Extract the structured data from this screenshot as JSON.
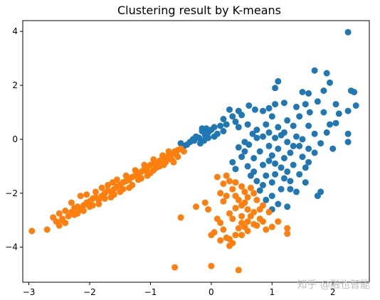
{
  "chart_data": {
    "type": "scatter",
    "title": "Clustering result by K-means",
    "xlabel": "",
    "ylabel": "",
    "xlim": [
      -3.1,
      2.6
    ],
    "ylim": [
      -5.3,
      4.4
    ],
    "xticks": [
      -3,
      -2,
      -1,
      0,
      1,
      2
    ],
    "yticks": [
      -4,
      -2,
      0,
      2,
      4
    ],
    "grid": false,
    "legend": "none",
    "series": [
      {
        "color": "#1f77b4",
        "points": [
          [
            2.25,
            3.97
          ],
          [
            1.7,
            2.55
          ],
          [
            1.9,
            2.45
          ],
          [
            1.1,
            2.15
          ],
          [
            1.05,
            1.9
          ],
          [
            1.5,
            1.75
          ],
          [
            1.6,
            1.7
          ],
          [
            1.85,
            1.8
          ],
          [
            1.95,
            2.1
          ],
          [
            2.3,
            1.8
          ],
          [
            2.35,
            1.75
          ],
          [
            2.05,
            1.3
          ],
          [
            1.75,
            1.4
          ],
          [
            1.55,
            1.3
          ],
          [
            1.2,
            1.35
          ],
          [
            1.05,
            1.3
          ],
          [
            0.95,
            1.15
          ],
          [
            0.85,
            1.05
          ],
          [
            0.72,
            1.1
          ],
          [
            0.62,
            1.25
          ],
          [
            0.45,
            1.05
          ],
          [
            0.3,
            1.1
          ],
          [
            1.4,
            1.2
          ],
          [
            1.62,
            1.0
          ],
          [
            1.85,
            1.0
          ],
          [
            2.1,
            0.95
          ],
          [
            2.25,
            1.05
          ],
          [
            2.38,
            1.25
          ],
          [
            2.05,
            0.6
          ],
          [
            2.25,
            0.2
          ],
          [
            2.25,
            -0.1
          ],
          [
            1.95,
            0.55
          ],
          [
            1.7,
            0.2
          ],
          [
            1.8,
            -0.15
          ],
          [
            1.7,
            -0.5
          ],
          [
            1.6,
            -0.85
          ],
          [
            1.55,
            -1.05
          ],
          [
            1.8,
            -1.95
          ],
          [
            1.75,
            -2.1
          ],
          [
            1.4,
            -1.95
          ],
          [
            1.3,
            -1.55
          ],
          [
            1.45,
            -1.3
          ],
          [
            1.35,
            -0.95
          ],
          [
            1.15,
            -1.05
          ],
          [
            1.05,
            -1.3
          ],
          [
            1.2,
            -1.45
          ],
          [
            1.0,
            -1.6
          ],
          [
            0.85,
            -1.7
          ],
          [
            0.75,
            -1.55
          ],
          [
            0.7,
            -1.2
          ],
          [
            0.85,
            -0.95
          ],
          [
            0.95,
            -0.8
          ],
          [
            0.6,
            -1.0
          ],
          [
            0.5,
            -0.65
          ],
          [
            0.45,
            -0.3
          ],
          [
            0.55,
            -0.1
          ],
          [
            0.62,
            -0.2
          ],
          [
            0.68,
            0.2
          ],
          [
            0.75,
            0.35
          ],
          [
            0.9,
            0.55
          ],
          [
            1.0,
            0.85
          ],
          [
            1.25,
            0.7
          ],
          [
            1.35,
            0.5
          ],
          [
            1.45,
            0.85
          ],
          [
            1.4,
            0.1
          ],
          [
            1.2,
            0.25
          ],
          [
            1.1,
            0.45
          ],
          [
            0.95,
            0.25
          ],
          [
            1.05,
            0.05
          ],
          [
            1.25,
            -0.1
          ],
          [
            1.45,
            -0.25
          ],
          [
            1.3,
            -0.5
          ],
          [
            1.1,
            -0.35
          ],
          [
            0.95,
            -0.25
          ],
          [
            0.8,
            -0.45
          ],
          [
            0.7,
            -0.7
          ],
          [
            1.0,
            -0.6
          ],
          [
            1.2,
            -0.7
          ],
          [
            1.5,
            -0.65
          ],
          [
            1.6,
            -0.35
          ],
          [
            1.15,
            -1.85
          ],
          [
            1.0,
            -2.1
          ],
          [
            0.9,
            -2.25
          ],
          [
            1.1,
            -2.4
          ],
          [
            1.0,
            -2.6
          ],
          [
            1.25,
            -2.5
          ],
          [
            0.8,
            -1.9
          ],
          [
            1.55,
            -1.6
          ],
          [
            1.35,
            -0.25
          ],
          [
            1.15,
            0.15
          ],
          [
            0.85,
            0.1
          ],
          [
            0.55,
            -0.45
          ],
          [
            0.65,
            -1.35
          ],
          [
            0.4,
            -1.1
          ],
          [
            0.35,
            -0.85
          ],
          [
            0.75,
            0.05
          ],
          [
            1.6,
            0.5
          ],
          [
            1.5,
            0.0
          ],
          [
            1.9,
            0.25
          ],
          [
            2.0,
            -0.35
          ],
          [
            1.25,
            -1.2
          ],
          [
            1.05,
            -0.9
          ],
          [
            0.9,
            -1.35
          ],
          [
            1.3,
            -1.85
          ],
          [
            0.25,
            0.55
          ],
          [
            0.15,
            0.5
          ],
          [
            0.2,
            0.75
          ],
          [
            0.05,
            0.45
          ],
          [
            0.0,
            0.35
          ],
          [
            -0.05,
            0.25
          ],
          [
            -0.1,
            0.15
          ],
          [
            -0.15,
            0.3
          ],
          [
            -0.2,
            0.05
          ],
          [
            -0.25,
            0.1
          ],
          [
            -0.28,
            -0.05
          ],
          [
            -0.35,
            -0.1
          ],
          [
            -0.4,
            -0.2
          ],
          [
            -0.45,
            -0.25
          ],
          [
            -0.5,
            -0.15
          ],
          [
            -0.15,
            0.4
          ],
          [
            -0.08,
            0.4
          ],
          [
            0.1,
            0.2
          ],
          [
            0.05,
            0.1
          ],
          [
            -0.05,
            0.05
          ],
          [
            -0.18,
            -0.15
          ],
          [
            -0.3,
            0.0
          ],
          [
            -0.12,
            -0.05
          ],
          [
            0.35,
            0.85
          ],
          [
            0.4,
            0.65
          ],
          [
            0.6,
            0.55
          ],
          [
            0.45,
            0.45
          ],
          [
            0.2,
            0.3
          ],
          [
            0.5,
            0.9
          ]
        ]
      },
      {
        "color": "#ff7f0e",
        "points": [
          [
            -2.95,
            -3.4
          ],
          [
            -2.7,
            -3.35
          ],
          [
            -2.55,
            -3.05
          ],
          [
            -2.45,
            -2.95
          ],
          [
            -2.5,
            -2.75
          ],
          [
            -2.4,
            -2.65
          ],
          [
            -2.35,
            -2.85
          ],
          [
            -2.3,
            -2.7
          ],
          [
            -2.25,
            -2.55
          ],
          [
            -2.2,
            -2.5
          ],
          [
            -2.15,
            -2.6
          ],
          [
            -2.1,
            -2.45
          ],
          [
            -2.05,
            -2.35
          ],
          [
            -2.0,
            -2.3
          ],
          [
            -1.95,
            -2.2
          ],
          [
            -1.9,
            -2.15
          ],
          [
            -1.85,
            -2.25
          ],
          [
            -1.8,
            -2.1
          ],
          [
            -1.75,
            -2.0
          ],
          [
            -1.7,
            -1.9
          ],
          [
            -1.65,
            -1.95
          ],
          [
            -1.6,
            -1.85
          ],
          [
            -1.55,
            -1.75
          ],
          [
            -1.5,
            -1.7
          ],
          [
            -1.45,
            -1.6
          ],
          [
            -1.4,
            -1.55
          ],
          [
            -1.35,
            -1.5
          ],
          [
            -1.3,
            -1.4
          ],
          [
            -1.25,
            -1.35
          ],
          [
            -1.2,
            -1.3
          ],
          [
            -1.15,
            -1.2
          ],
          [
            -1.1,
            -1.1
          ],
          [
            -1.05,
            -1.05
          ],
          [
            -1.0,
            -0.95
          ],
          [
            -0.95,
            -0.9
          ],
          [
            -0.9,
            -0.85
          ],
          [
            -0.85,
            -0.8
          ],
          [
            -0.8,
            -0.7
          ],
          [
            -0.75,
            -0.65
          ],
          [
            -0.7,
            -0.6
          ],
          [
            -0.65,
            -0.55
          ],
          [
            -0.6,
            -0.45
          ],
          [
            -0.55,
            -0.4
          ],
          [
            -0.5,
            -0.35
          ],
          [
            -2.45,
            -3.0
          ],
          [
            -2.2,
            -2.75
          ],
          [
            -2.0,
            -2.5
          ],
          [
            -1.85,
            -2.4
          ],
          [
            -1.75,
            -2.2
          ],
          [
            -1.6,
            -2.05
          ],
          [
            -1.45,
            -1.85
          ],
          [
            -1.3,
            -1.7
          ],
          [
            -1.2,
            -1.5
          ],
          [
            -1.05,
            -1.35
          ],
          [
            -0.95,
            -1.15
          ],
          [
            -0.85,
            -1.0
          ],
          [
            -0.75,
            -0.85
          ],
          [
            -0.65,
            -0.75
          ],
          [
            -0.55,
            -0.65
          ],
          [
            -2.05,
            -2.05
          ],
          [
            -1.9,
            -1.95
          ],
          [
            -1.7,
            -1.7
          ],
          [
            -1.55,
            -1.5
          ],
          [
            -1.4,
            -1.35
          ],
          [
            -1.25,
            -1.15
          ],
          [
            -1.1,
            -0.95
          ],
          [
            -0.95,
            -0.75
          ],
          [
            -0.8,
            -0.6
          ],
          [
            -0.7,
            -0.45
          ],
          [
            -2.6,
            -2.9
          ],
          [
            -2.3,
            -2.35
          ],
          [
            -2.1,
            -2.65
          ],
          [
            -1.95,
            -2.45
          ],
          [
            -1.65,
            -2.15
          ],
          [
            -1.5,
            -1.95
          ],
          [
            -1.35,
            -1.8
          ],
          [
            -1.15,
            -1.45
          ],
          [
            -1.0,
            -1.25
          ],
          [
            -0.9,
            -1.05
          ],
          [
            -0.78,
            -0.95
          ],
          [
            -0.62,
            -0.85
          ],
          [
            -2.15,
            -2.1
          ],
          [
            -1.8,
            -1.8
          ],
          [
            -1.62,
            -1.6
          ],
          [
            -1.38,
            -1.45
          ],
          [
            -1.22,
            -1.25
          ],
          [
            -1.08,
            -1.15
          ],
          [
            -0.88,
            -0.9
          ],
          [
            -0.72,
            -0.75
          ],
          [
            -0.58,
            -0.55
          ],
          [
            -0.45,
            -0.45
          ],
          [
            -2.5,
            -3.2
          ],
          [
            -2.4,
            -3.1
          ],
          [
            -2.25,
            -2.8
          ],
          [
            -0.5,
            -2.9
          ],
          [
            -0.1,
            -2.35
          ],
          [
            -0.05,
            -2.6
          ],
          [
            0.1,
            -2.95
          ],
          [
            0.15,
            -3.1
          ],
          [
            0.05,
            -3.45
          ],
          [
            0.0,
            -3.55
          ],
          [
            0.2,
            -3.35
          ],
          [
            0.25,
            -3.65
          ],
          [
            0.3,
            -3.95
          ],
          [
            0.35,
            -3.85
          ],
          [
            0.4,
            -3.55
          ],
          [
            0.45,
            -3.3
          ],
          [
            0.5,
            -3.1
          ],
          [
            0.55,
            -3.25
          ],
          [
            0.6,
            -3.05
          ],
          [
            0.65,
            -2.85
          ],
          [
            0.7,
            -3.15
          ],
          [
            0.75,
            -3.2
          ],
          [
            0.8,
            -2.95
          ],
          [
            0.85,
            -3.05
          ],
          [
            0.9,
            -3.35
          ],
          [
            1.0,
            -3.25
          ],
          [
            1.1,
            -3.05
          ],
          [
            1.25,
            -3.3
          ],
          [
            1.25,
            -3.5
          ],
          [
            0.35,
            -2.95
          ],
          [
            0.3,
            -2.75
          ],
          [
            0.4,
            -2.55
          ],
          [
            0.5,
            -2.45
          ],
          [
            0.45,
            -2.25
          ],
          [
            0.55,
            -2.35
          ],
          [
            0.6,
            -2.15
          ],
          [
            0.7,
            -2.0
          ],
          [
            0.65,
            -1.8
          ],
          [
            0.5,
            -1.75
          ],
          [
            0.4,
            -1.6
          ],
          [
            0.3,
            -1.55
          ],
          [
            0.2,
            -1.65
          ],
          [
            0.1,
            -1.4
          ],
          [
            0.25,
            -1.35
          ],
          [
            0.35,
            -1.85
          ],
          [
            0.25,
            -2.1
          ],
          [
            0.15,
            -2.0
          ],
          [
            0.75,
            -2.25
          ],
          [
            0.85,
            -2.45
          ],
          [
            0.95,
            -2.7
          ],
          [
            0.8,
            -2.6
          ],
          [
            0.7,
            -2.7
          ],
          [
            0.6,
            -2.6
          ],
          [
            0.5,
            -2.85
          ],
          [
            0.4,
            -2.1
          ],
          [
            0.55,
            -1.95
          ],
          [
            0.2,
            -2.3
          ],
          [
            0.6,
            -3.4
          ],
          [
            0.5,
            -3.55
          ],
          [
            0.45,
            -4.85
          ],
          [
            0.0,
            -4.7
          ],
          [
            -0.6,
            -4.75
          ],
          [
            -0.25,
            -2.5
          ],
          [
            0.3,
            -3.7
          ],
          [
            0.15,
            -3.75
          ]
        ]
      }
    ]
  },
  "watermark": "知乎 @融也智能"
}
